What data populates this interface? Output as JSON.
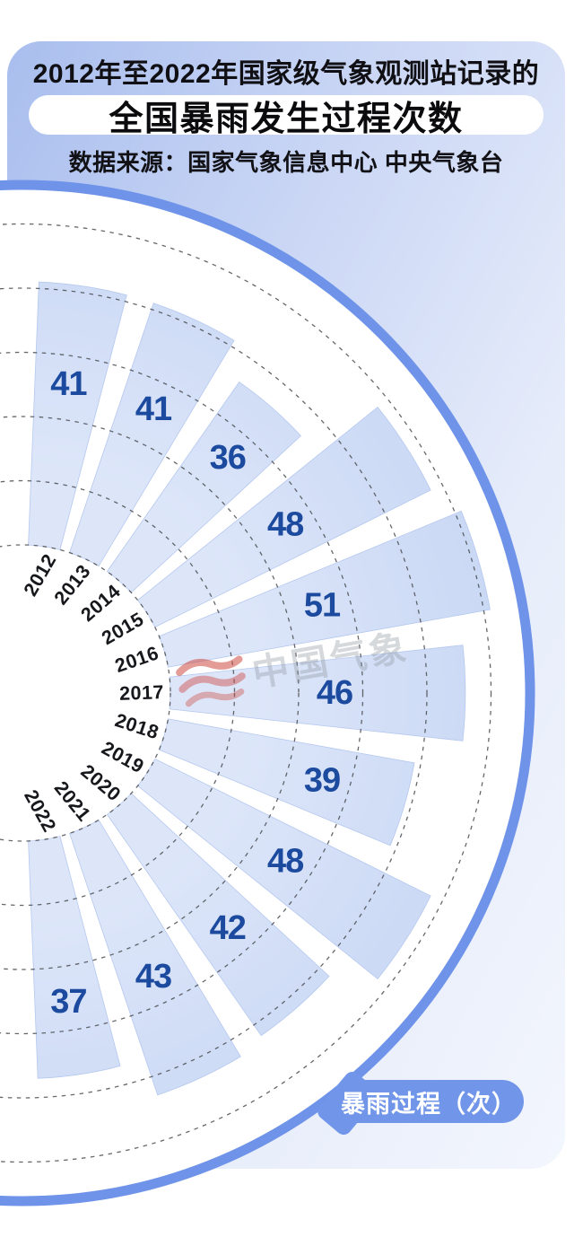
{
  "header": {
    "title_line1": "2012年至2022年国家级气象观测站记录的",
    "title_line2": "全国暴雨发生过程次数",
    "source": "数据来源：国家气象信息中心 中央气象台"
  },
  "legend": {
    "label": "暴雨过程（次）"
  },
  "watermark": {
    "text": "中国气象",
    "logo": "red-waves-logo"
  },
  "chart_data": {
    "type": "bar",
    "variant": "polar-fan",
    "title": "2012年至2022年国家级气象观测站记录的全国暴雨发生过程次数",
    "categories": [
      "2012",
      "2013",
      "2014",
      "2015",
      "2016",
      "2017",
      "2018",
      "2019",
      "2020",
      "2021",
      "2022"
    ],
    "values": [
      41,
      41,
      36,
      48,
      51,
      46,
      39,
      48,
      42,
      43,
      37
    ],
    "unit": "次",
    "series_label": "暴雨过程（次）",
    "rlim": [
      0,
      50
    ],
    "ring_step": 10,
    "grid": "dashed-concentric",
    "legend_position": "bottom-right"
  },
  "theme": {
    "accent_blue": "#6e93e9",
    "bar_fill_inner": "#dde6f9",
    "bar_fill_outer": "#c8d7f4",
    "bar_stroke": "#b5c8ef",
    "value_color": "#1b4a9e",
    "year_color": "#17181c",
    "grid_color": "#4a4c52",
    "disc_fill": "#ffffff",
    "pill_bg": "#7095e9",
    "pill_text": "#ffffff",
    "watermark_gray": "#8e959e",
    "watermark_red": "#ce4a42",
    "card_gradient_start": "#a9beee",
    "card_gradient_end": "#f3f6fd"
  }
}
